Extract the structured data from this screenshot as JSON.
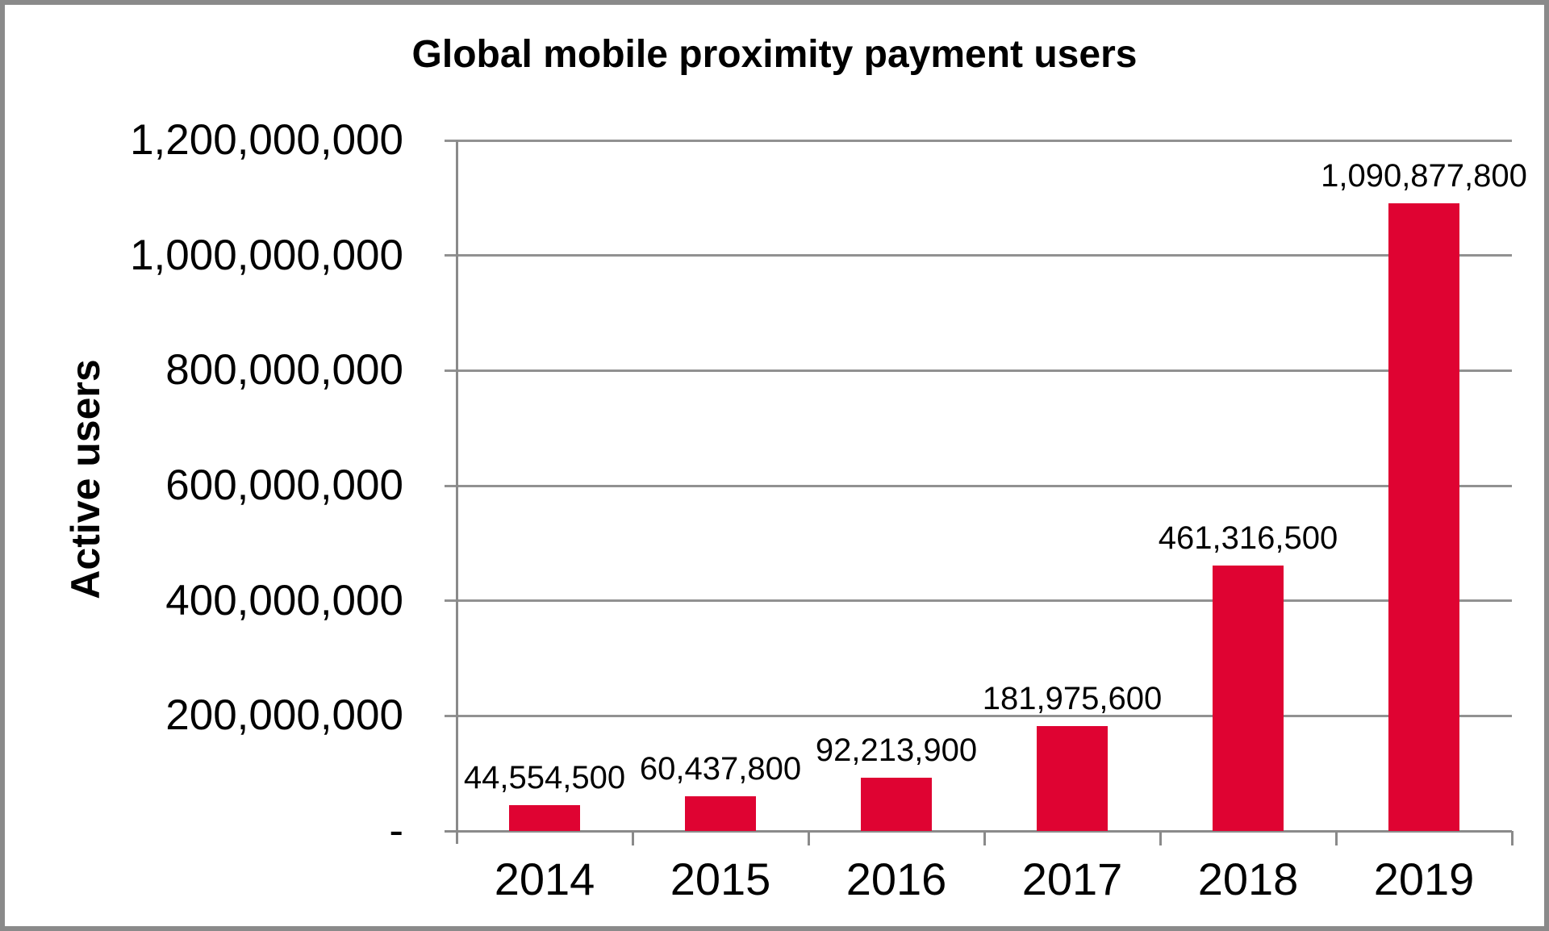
{
  "title": "Global mobile proximity payment users",
  "chart_data": {
    "type": "bar",
    "title": "Global mobile proximity payment users",
    "xlabel": "",
    "ylabel": "Active users",
    "categories": [
      "2014",
      "2015",
      "2016",
      "2017",
      "2018",
      "2019"
    ],
    "values": [
      44554500,
      60437800,
      92213900,
      181975600,
      461316500,
      1090877800
    ],
    "value_labels": [
      "44,554,500",
      "60,437,800",
      "92,213,900",
      "181,975,600",
      "461,316,500",
      "1,090,877,800"
    ],
    "ylim": [
      0,
      1200000000
    ],
    "y_tick_step": 200000000,
    "y_tick_labels": [
      "-",
      "200,000,000",
      "400,000,000",
      "600,000,000",
      "800,000,000",
      "1,000,000,000",
      "1,200,000,000"
    ],
    "grid": true,
    "legend": false,
    "series_name": "Active users",
    "bar_color": "#df0332",
    "axis_color": "#8a8a8a",
    "gridline_color": "#919191",
    "text_color": "#000000",
    "background_color": "#ffffff",
    "frame_border_color": "#8a8a8a"
  }
}
